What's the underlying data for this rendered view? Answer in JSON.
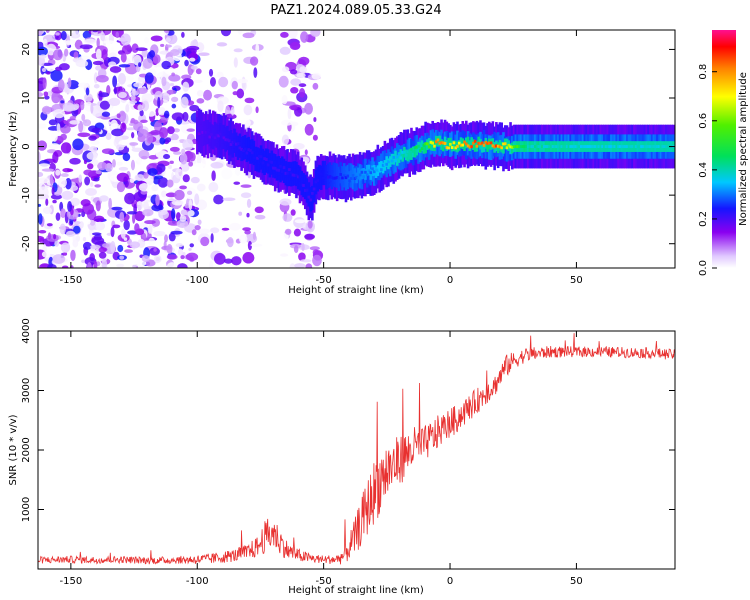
{
  "title": "PAZ1.2024.089.05.33.G24",
  "chart_data": [
    {
      "type": "heatmap",
      "xlabel": "Height of straight line (km)",
      "ylabel": "Frequency (Hz)",
      "xlim": [
        -163,
        89
      ],
      "ylim": [
        -25,
        24
      ],
      "xticks": [
        -150,
        -100,
        -50,
        0,
        50
      ],
      "yticks": [
        -20,
        -10,
        0,
        10,
        20
      ],
      "grid": false,
      "colorbar": {
        "label": "Normalized spectral amplitude",
        "range": [
          0,
          0.97
        ],
        "ticks": [
          0.0,
          0.2,
          0.4,
          0.6,
          0.8
        ],
        "colormap": "rainbow (violet to red)"
      },
      "ridge_frequency": {
        "x": [
          -100,
          -90,
          -80,
          -70,
          -60,
          -55,
          -52,
          -48,
          -40,
          -30,
          -20,
          -10,
          -5,
          0,
          10,
          20,
          30,
          50,
          70,
          89
        ],
        "y": [
          3,
          2,
          -1,
          -4,
          -6,
          -11,
          -6,
          -6,
          -6.5,
          -5,
          -2,
          0,
          0.8,
          0.2,
          0.5,
          0,
          0,
          0,
          0,
          0
        ]
      },
      "ridge_amplitude": {
        "x": [
          -100,
          -80,
          -60,
          -50,
          -40,
          -30,
          -20,
          -10,
          -5,
          0,
          10,
          20,
          30,
          50,
          70,
          89
        ],
        "y": [
          0.2,
          0.25,
          0.25,
          0.25,
          0.3,
          0.35,
          0.4,
          0.55,
          0.9,
          0.75,
          0.95,
          0.9,
          0.45,
          0.42,
          0.42,
          0.42
        ]
      }
    },
    {
      "type": "line",
      "xlabel": "Height of straight line (km)",
      "ylabel": "SNR (10 * v/v)",
      "xlim": [
        -163,
        89
      ],
      "ylim": [
        0,
        4000
      ],
      "xticks": [
        -150,
        -100,
        -50,
        0,
        50
      ],
      "yticks": [
        1000,
        2000,
        3000,
        4000
      ],
      "grid": false,
      "series": [
        {
          "color": "#e8302f",
          "x": [
            -163,
            -150,
            -140,
            -130,
            -120,
            -110,
            -100,
            -95,
            -90,
            -85,
            -80,
            -76,
            -73,
            -70,
            -67,
            -64,
            -60,
            -55,
            -50,
            -45,
            -42,
            -38,
            -34,
            -30,
            -26,
            -22,
            -18,
            -14,
            -10,
            -6,
            -2,
            2,
            6,
            10,
            14,
            18,
            20,
            22,
            25,
            30,
            40,
            50,
            60,
            70,
            80,
            89
          ],
          "y": [
            150,
            160,
            150,
            160,
            140,
            150,
            160,
            170,
            200,
            230,
            280,
            380,
            550,
            620,
            450,
            300,
            230,
            180,
            160,
            160,
            220,
            500,
            900,
            1300,
            1600,
            1750,
            1900,
            2050,
            2100,
            2250,
            2400,
            2500,
            2650,
            2800,
            2950,
            3100,
            3250,
            3400,
            3500,
            3600,
            3650,
            3650,
            3650,
            3640,
            3630,
            3600
          ],
          "noise": [
            60,
            60,
            60,
            60,
            60,
            60,
            80,
            90,
            100,
            110,
            140,
            180,
            280,
            300,
            220,
            150,
            110,
            80,
            70,
            80,
            150,
            300,
            450,
            550,
            550,
            450,
            400,
            350,
            300,
            300,
            250,
            250,
            230,
            220,
            200,
            180,
            200,
            200,
            150,
            120,
            100,
            90,
            90,
            90,
            90,
            90
          ]
        }
      ]
    }
  ]
}
